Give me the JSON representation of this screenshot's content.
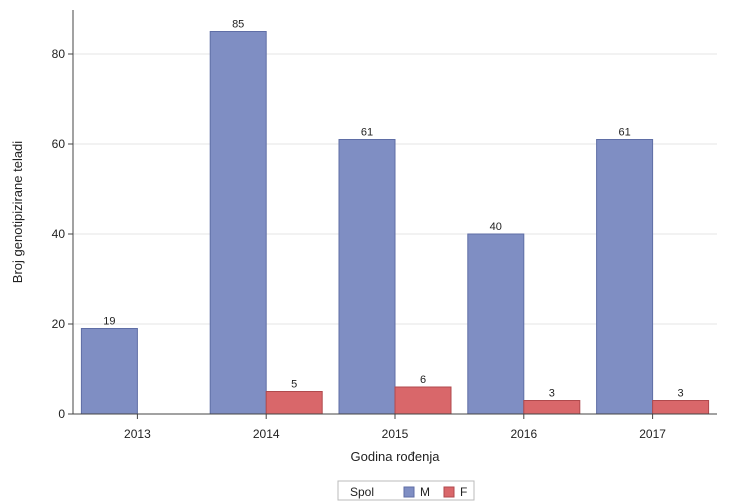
{
  "chart_data": {
    "type": "bar",
    "title": "",
    "xlabel": "Godina rođenja",
    "ylabel": "Broj genotipizirane teladi",
    "categories": [
      "2013",
      "2014",
      "2015",
      "2016",
      "2017"
    ],
    "series": [
      {
        "name": "M",
        "color": "#7f8ec3",
        "values": [
          19,
          85,
          61,
          40,
          61
        ]
      },
      {
        "name": "F",
        "color": "#d9676a",
        "values": [
          null,
          5,
          6,
          3,
          3
        ]
      }
    ],
    "data_labels": [
      [
        "19",
        "85",
        "61",
        "40",
        "61"
      ],
      [
        "",
        "5",
        "6",
        "3",
        "3"
      ]
    ],
    "ylim": [
      0,
      90
    ],
    "yticks": [
      0,
      20,
      40,
      60,
      80
    ],
    "grid": true,
    "legend": {
      "title": "Spol",
      "position": "bottom-center"
    }
  }
}
